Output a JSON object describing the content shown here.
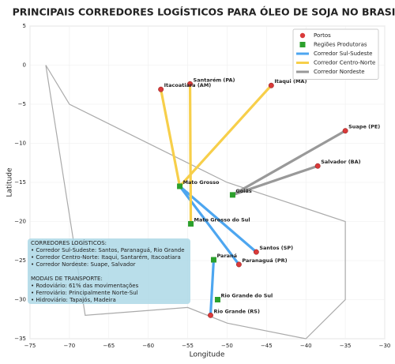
{
  "chart_data": {
    "type": "scatter",
    "title": "PRINCIPAIS CORREDORES LOGÍSTICOS PARA ÓLEO DE SOJA NO BRASIL",
    "xlabel": "Longitude",
    "ylabel": "Latitude",
    "xlim": [
      -75,
      -30
    ],
    "ylim": [
      -35,
      5
    ],
    "xticks": [
      {
        "value": -75,
        "label": "−75"
      },
      {
        "value": -70,
        "label": "−70"
      },
      {
        "value": -65,
        "label": "−65"
      },
      {
        "value": -60,
        "label": "−60"
      },
      {
        "value": -55,
        "label": "−55"
      },
      {
        "value": -50,
        "label": "−50"
      },
      {
        "value": -45,
        "label": "−45"
      },
      {
        "value": -40,
        "label": "−40"
      },
      {
        "value": -35,
        "label": "−35"
      },
      {
        "value": -30,
        "label": "−30"
      }
    ],
    "yticks": [
      {
        "value": -35,
        "label": "−35"
      },
      {
        "value": -30,
        "label": "−30"
      },
      {
        "value": -25,
        "label": "−25"
      },
      {
        "value": -20,
        "label": "−20"
      },
      {
        "value": -15,
        "label": "−15"
      },
      {
        "value": -10,
        "label": "−10"
      },
      {
        "value": -5,
        "label": "−5"
      },
      0,
      5
    ],
    "grid": true,
    "legend_position": "upper right",
    "outline": {
      "color": "#aaaaaa",
      "x": [
        -73,
        -70,
        -50,
        -35,
        -35,
        -40,
        -50,
        -55,
        -68,
        -73
      ],
      "y": [
        0,
        -5,
        -15,
        -20,
        -30,
        -35,
        -33,
        -31,
        -32,
        0
      ]
    },
    "series": [
      {
        "name": "Portos",
        "kind": "circle",
        "color": "#d93a3a",
        "labels": [
          "Itacoatiara (AM)",
          "Santarém (PA)",
          "Itaqui (MA)",
          "Suape (PE)",
          "Salvador (BA)",
          "Santos (SP)",
          "Paranaguá (PR)",
          "Rio Grande (RS)"
        ],
        "x": [
          -58.4,
          -54.7,
          -44.4,
          -35,
          -38.5,
          -46.3,
          -48.5,
          -52.1
        ],
        "y": [
          -3.1,
          -2.4,
          -2.6,
          -8.4,
          -12.9,
          -23.9,
          -25.5,
          -32
        ]
      },
      {
        "name": "Regiões Produtoras",
        "kind": "square",
        "color": "#2ca02c",
        "labels": [
          "Mato Grosso",
          "Goiás",
          "Mato Grosso do Sul",
          "Paraná",
          "Rio Grande do Sul"
        ],
        "x": [
          -56,
          -49.3,
          -54.6,
          -51.7,
          -51.2
        ],
        "y": [
          -15.5,
          -16.6,
          -20.3,
          -24.9,
          -30
        ]
      },
      {
        "name": "Corredor Sul-Sudeste",
        "kind": "line",
        "color": "#4da6f0",
        "segments": [
          {
            "x": [
              -56,
              -46.3
            ],
            "y": [
              -15.5,
              -23.9
            ]
          },
          {
            "x": [
              -56,
              -48.5
            ],
            "y": [
              -15.5,
              -25.5
            ]
          },
          {
            "x": [
              -51.7,
              -52.1
            ],
            "y": [
              -24.9,
              -32
            ]
          }
        ]
      },
      {
        "name": "Corredor Centro-Norte",
        "kind": "line",
        "color": "#f7cf4a",
        "segments": [
          {
            "x": [
              -56,
              -58.4
            ],
            "y": [
              -15.5,
              -3.1
            ]
          },
          {
            "x": [
              -54.6,
              -54.7
            ],
            "y": [
              -20.3,
              -2.4
            ]
          },
          {
            "x": [
              -56,
              -44.4
            ],
            "y": [
              -15.5,
              -2.6
            ]
          }
        ]
      },
      {
        "name": "Corredor Nordeste",
        "kind": "line",
        "color": "#999999",
        "segments": [
          {
            "x": [
              -49.3,
              -35
            ],
            "y": [
              -16.6,
              -8.4
            ]
          },
          {
            "x": [
              -49.3,
              -38.5
            ],
            "y": [
              -16.6,
              -12.9
            ]
          }
        ]
      }
    ],
    "info_box": {
      "color": "#add8e6",
      "lines": [
        "CORREDORES LOGÍSTICOS:",
        "• Corredor Sul-Sudeste: Santos, Paranaguá, Rio Grande",
        "• Corredor Centro-Norte: Itaqui, Santarém, Itacoatiara",
        "• Corredor Nordeste: Suape, Salvador",
        "",
        "MODAIS DE TRANSPORTE:",
        "• Rodoviário: 61% das movimentações",
        "• Ferroviário: Principalmente Norte-Sul",
        "• Hidroviário: Tapajós, Madeira"
      ]
    }
  }
}
